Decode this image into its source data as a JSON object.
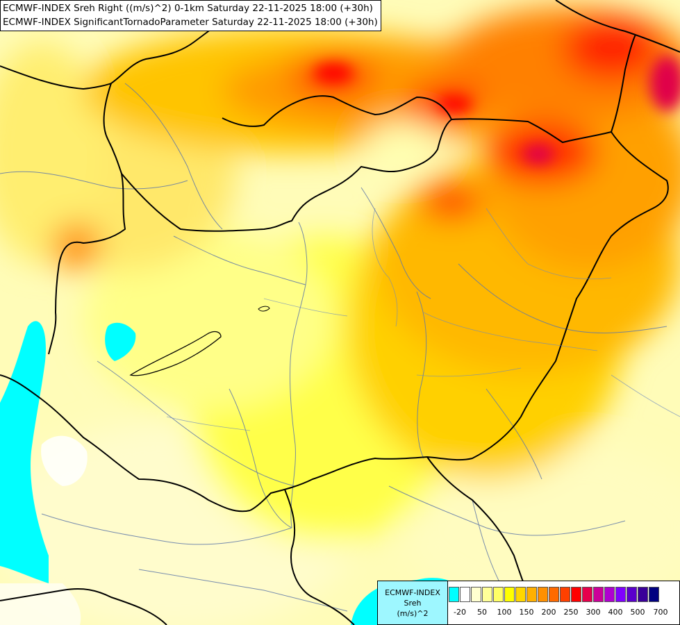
{
  "titles": {
    "line1": "ECMWF-INDEX Sreh Right ((m/s)^2) 0-1km Saturday 22-11-2025 18:00 (+30h)",
    "line2": "ECMWF-INDEX SignificantTornadoParameter Saturday 22-11-2025 18:00 (+30h)"
  },
  "legend": {
    "title_line1": "ECMWF-INDEX",
    "title_line2": "Sreh",
    "title_line3": "(m/s)^2",
    "colors": [
      "#00ffff",
      "#ffffff",
      "#ffffd0",
      "#ffff99",
      "#ffff66",
      "#ffff00",
      "#ffd700",
      "#ffb000",
      "#ff9000",
      "#ff6a00",
      "#ff4000",
      "#ff0000",
      "#e6004c",
      "#cc0099",
      "#b000d0",
      "#8000ff",
      "#5a00cc",
      "#3a0099",
      "#000080"
    ],
    "ticks": [
      "-20",
      "50",
      "100",
      "150",
      "200",
      "250",
      "300",
      "400",
      "500",
      "700"
    ]
  }
}
